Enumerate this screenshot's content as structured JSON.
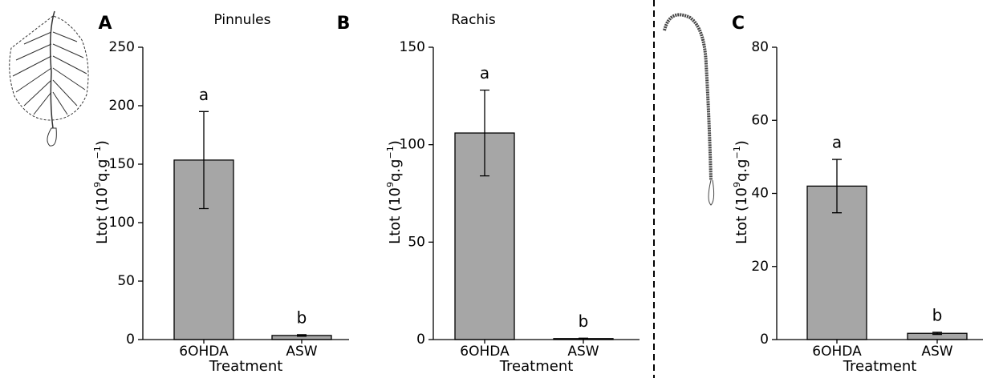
{
  "chart_data": [
    {
      "type": "bar",
      "panel_label": "A",
      "title": "Pinnules",
      "x_label": "Treatment",
      "y_label": [
        {
          "text": "Ltot (10"
        },
        {
          "text": "9",
          "sup": true
        },
        {
          "text": "q.g"
        },
        {
          "text": "−1",
          "sup": true
        },
        {
          "text": ")"
        }
      ],
      "categories": [
        "6OHDA",
        "ASW"
      ],
      "values": [
        153.5,
        3.5
      ],
      "errors": [
        41.5,
        0.7
      ],
      "letters": [
        "a",
        "b"
      ],
      "color": "#a6a6a6",
      "ylim": [
        0,
        250
      ],
      "yticks": [
        0,
        50,
        100,
        150,
        200,
        250
      ]
    },
    {
      "type": "bar",
      "panel_label": "B",
      "title": "Rachis",
      "x_label": "Treatment",
      "y_label": [
        {
          "text": "Ltot (10"
        },
        {
          "text": "9",
          "sup": true
        },
        {
          "text": "q.g"
        },
        {
          "text": "−1",
          "sup": true
        },
        {
          "text": ")"
        }
      ],
      "categories": [
        "6OHDA",
        "ASW"
      ],
      "values": [
        106,
        0.5
      ],
      "errors": [
        22,
        0.2
      ],
      "letters": [
        "a",
        "b"
      ],
      "color": "#a6a6a6",
      "ylim": [
        0,
        150
      ],
      "yticks": [
        0,
        50,
        100,
        150
      ]
    },
    {
      "type": "bar",
      "panel_label": "C",
      "x_label": "Treatment",
      "y_label": [
        {
          "text": "Ltot (10"
        },
        {
          "text": "9",
          "sup": true
        },
        {
          "text": "q.g"
        },
        {
          "text": "−1",
          "sup": true
        },
        {
          "text": ")"
        }
      ],
      "categories": [
        "6OHDA",
        "ASW"
      ],
      "values": [
        42,
        1.7
      ],
      "errors": [
        7.3,
        0.3
      ],
      "letters": [
        "a",
        "b"
      ],
      "color": "#a6a6a6",
      "ylim": [
        0,
        80
      ],
      "yticks": [
        0,
        20,
        40,
        60,
        80
      ]
    }
  ]
}
